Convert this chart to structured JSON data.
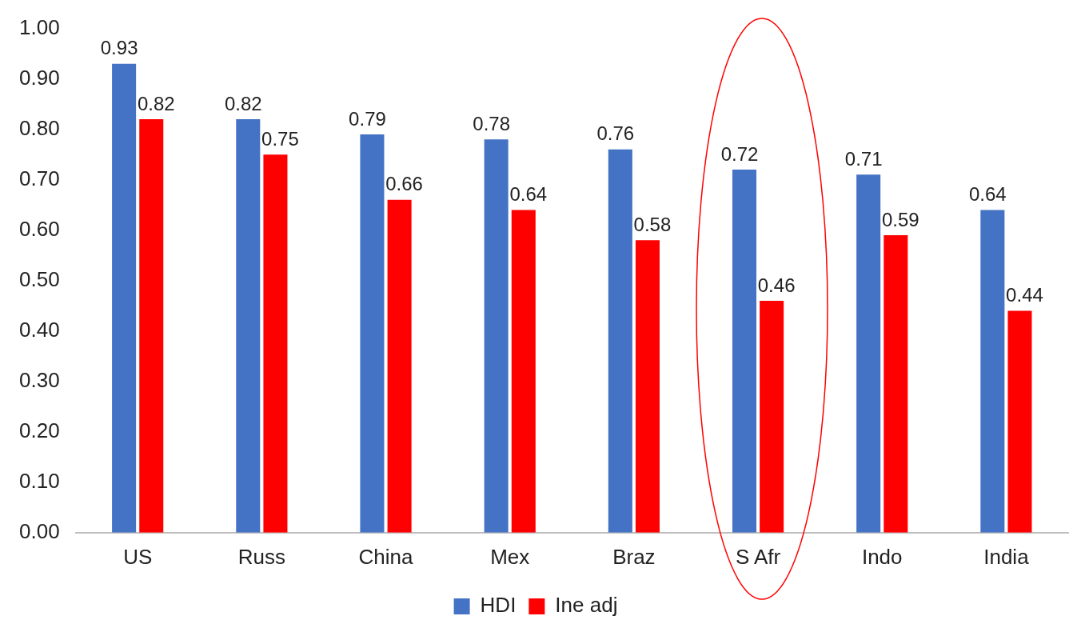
{
  "chart_data": {
    "type": "bar",
    "categories": [
      "US",
      "Russ",
      "China",
      "Mex",
      "Braz",
      "S Afr",
      "Indo",
      "India"
    ],
    "series": [
      {
        "name": "HDI",
        "color": "#4472c4",
        "values": [
          0.93,
          0.82,
          0.79,
          0.78,
          0.76,
          0.72,
          0.71,
          0.64
        ]
      },
      {
        "name": "Ine adj",
        "color": "#ff0000",
        "values": [
          0.82,
          0.75,
          0.66,
          0.64,
          0.58,
          0.46,
          0.59,
          0.44
        ]
      }
    ],
    "ylim": [
      0,
      1
    ],
    "yticks": [
      {
        "value": 0,
        "label": "0.00"
      },
      {
        "value": 0.1,
        "label": "0.10"
      },
      {
        "value": 0.2,
        "label": "0.20"
      },
      {
        "value": 0.3,
        "label": "0.30"
      },
      {
        "value": 0.4,
        "label": "0.40"
      },
      {
        "value": 0.5,
        "label": "0.50"
      },
      {
        "value": 0.6,
        "label": "0.60"
      },
      {
        "value": 0.7,
        "label": "0.70"
      },
      {
        "value": 0.8,
        "label": "0.80"
      },
      {
        "value": 0.9,
        "label": "0.90"
      },
      {
        "value": 1,
        "label": "1.00"
      }
    ],
    "data_labels": true,
    "grid": false,
    "legend": "bottom"
  }
}
